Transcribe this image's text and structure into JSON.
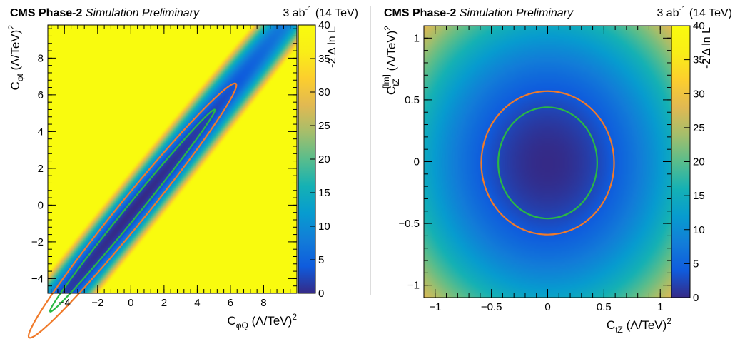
{
  "chart_data": [
    {
      "type": "heatmap",
      "header": {
        "experiment": "CMS Phase-2",
        "status": "Simulation Preliminary",
        "lumi": "3 ab",
        "lumi_exp": "-1",
        "energy": "(14 TeV)"
      },
      "xlabel": {
        "main": "C",
        "sub": "φQ",
        "unit": "(Λ/TeV)",
        "exp": "2"
      },
      "ylabel": {
        "main": "C",
        "sub": "φt",
        "unit": "(Λ/TeV)",
        "exp": "2"
      },
      "zlabel": "-2 Δ ln L",
      "xlim": [
        -5,
        10
      ],
      "ylim": [
        -4.8,
        9.8
      ],
      "zlim": [
        0,
        40
      ],
      "x_ticks": [
        "−4",
        "−2",
        "0",
        "2",
        "4",
        "6",
        "8"
      ],
      "x_tick_values": [
        -4,
        -2,
        0,
        2,
        4,
        6,
        8
      ],
      "y_ticks": [
        "−4",
        "−2",
        "0",
        "2",
        "4",
        "6",
        "8"
      ],
      "y_tick_values": [
        -4,
        -2,
        0,
        2,
        4,
        6,
        8
      ],
      "z_ticks": [
        "0",
        "5",
        "10",
        "15",
        "20",
        "25",
        "30",
        "35",
        "40"
      ],
      "z_tick_values": [
        0,
        5,
        10,
        15,
        20,
        25,
        30,
        35,
        40
      ],
      "minimum": [
        0.1,
        -0.3
      ],
      "valley_direction": [
        0.67,
        0.742
      ],
      "contours": [
        {
          "color": "#2ab844",
          "along_halfwidth": 7.4,
          "across_halfwidth": 0.38
        },
        {
          "color": "#f07a2a",
          "along_halfwidth": 9.3,
          "across_halfwidth": 0.78
        }
      ]
    },
    {
      "type": "heatmap",
      "header": {
        "experiment": "CMS Phase-2",
        "status": "Simulation Preliminary",
        "lumi": "3 ab",
        "lumi_exp": "-1",
        "energy": "(14 TeV)"
      },
      "xlabel": {
        "main": "C",
        "sub": "tZ",
        "unit": "(Λ/TeV)",
        "exp": "2"
      },
      "ylabel": {
        "main": "C",
        "sub": "tZ",
        "sup": "[Im]",
        "unit": "(Λ/TeV)",
        "exp": "2"
      },
      "zlabel": "-2 Δ ln L",
      "xlim": [
        -1.1,
        1.1
      ],
      "ylim": [
        -1.1,
        1.1
      ],
      "zlim": [
        0,
        40
      ],
      "x_ticks": [
        "−1",
        "−0.5",
        "0",
        "0.5",
        "1"
      ],
      "x_tick_values": [
        -1,
        -0.5,
        0,
        0.5,
        1
      ],
      "y_ticks": [
        "−1",
        "−0.5",
        "0",
        "0.5",
        "1"
      ],
      "y_tick_values": [
        -1,
        -0.5,
        0,
        0.5,
        1
      ],
      "z_ticks": [
        "0",
        "5",
        "10",
        "15",
        "20",
        "25",
        "30",
        "35",
        "40"
      ],
      "z_tick_values": [
        0,
        5,
        10,
        15,
        20,
        25,
        30,
        35,
        40
      ],
      "minimum": [
        0,
        -0.01
      ],
      "contours": [
        {
          "color": "#2ab844",
          "rx": 0.44,
          "ry": 0.45
        },
        {
          "color": "#f07a2a",
          "rx": 0.59,
          "ry": 0.58
        }
      ]
    }
  ]
}
